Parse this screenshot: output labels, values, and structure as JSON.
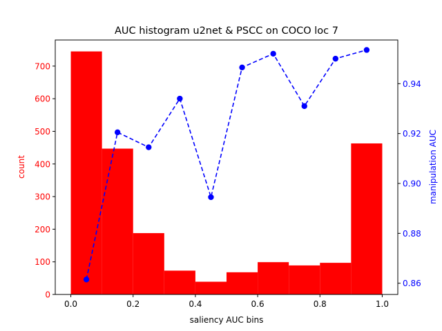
{
  "chart_data": {
    "type": "bar",
    "title": "AUC histogram u2net & PSCC on COCO loc 7",
    "xlabel": "saliency AUC bins",
    "ylabel": "count",
    "y2label": "manipulation AUC",
    "xlim": [
      -0.05,
      1.05
    ],
    "ylim": [
      0,
      780
    ],
    "y2lim": [
      0.8555,
      0.9575
    ],
    "grid": false,
    "colors": {
      "bars": "#ff0000",
      "line": "#0000ff",
      "axis": "#000000"
    },
    "x_ticks": [
      0.0,
      0.2,
      0.4,
      0.6,
      0.8,
      1.0
    ],
    "x_tick_labels": [
      "0.0",
      "0.2",
      "0.4",
      "0.6",
      "0.8",
      "1.0"
    ],
    "y_ticks": [
      0,
      100,
      200,
      300,
      400,
      500,
      600,
      700
    ],
    "y_tick_labels": [
      "0",
      "100",
      "200",
      "300",
      "400",
      "500",
      "600",
      "700"
    ],
    "y2_ticks": [
      0.86,
      0.88,
      0.9,
      0.92,
      0.94
    ],
    "y2_tick_labels": [
      "0.86",
      "0.88",
      "0.90",
      "0.92",
      "0.94"
    ],
    "histogram": {
      "bin_edges": [
        0.0,
        0.1,
        0.2,
        0.3,
        0.4,
        0.5,
        0.6,
        0.7,
        0.8,
        0.9,
        1.0
      ],
      "counts": [
        745,
        447,
        188,
        73,
        39,
        68,
        99,
        89,
        97,
        463
      ]
    },
    "line": {
      "x": [
        0.05,
        0.15,
        0.25,
        0.35,
        0.45,
        0.55,
        0.65,
        0.75,
        0.85,
        0.95
      ],
      "y": [
        0.8615,
        0.9205,
        0.9145,
        0.934,
        0.8945,
        0.9465,
        0.952,
        0.931,
        0.95,
        0.9535
      ]
    }
  }
}
